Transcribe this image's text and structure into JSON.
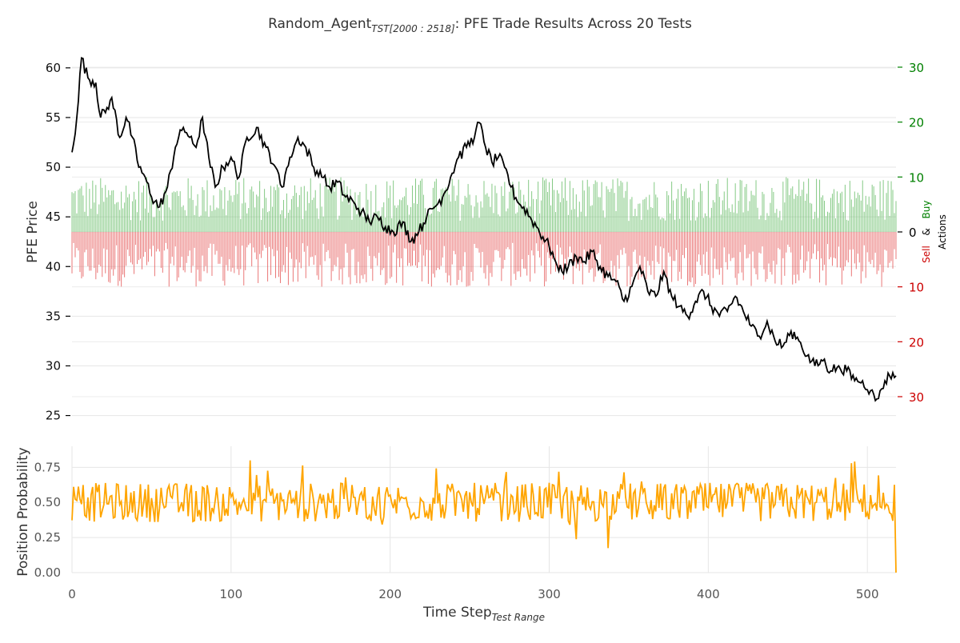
{
  "chart_data": [
    {
      "type": "line",
      "title_main": "Random_Agent",
      "title_sub": "TST[2000 : 2518]",
      "title_rest": ": PFE Trade Results Across 20 Tests",
      "ylabel": "PFE Price",
      "ylim": [
        24,
        62
      ],
      "yticks": [
        "25",
        "30",
        "35",
        "40",
        "45",
        "50",
        "55",
        "60"
      ],
      "xlim": [
        0,
        518
      ],
      "grid": true,
      "series": [
        {
          "color": "#000000",
          "x": [
            0,
            3,
            6,
            10,
            15,
            18,
            22,
            25,
            30,
            34,
            38,
            42,
            46,
            50,
            55,
            60,
            65,
            70,
            74,
            78,
            82,
            86,
            90,
            95,
            100,
            105,
            110,
            116,
            122,
            128,
            132,
            137,
            142,
            147,
            152,
            157,
            162,
            167,
            172,
            177,
            182,
            187,
            192,
            197,
            202,
            208,
            213,
            218,
            223,
            228,
            233,
            238,
            243,
            248,
            253,
            256,
            260,
            264,
            268,
            272,
            276,
            280,
            284,
            288,
            292,
            296,
            300,
            304,
            308,
            312,
            317,
            322,
            327,
            332,
            337,
            342,
            347,
            352,
            357,
            362,
            367,
            372,
            377,
            382,
            387,
            392,
            397,
            402,
            407,
            412,
            417,
            422,
            427,
            432,
            437,
            442,
            447,
            452,
            457,
            462,
            467,
            472,
            477,
            482,
            487,
            492,
            497,
            502,
            505,
            508,
            511,
            514,
            518
          ],
          "y": [
            51.5,
            55,
            61,
            59,
            58.5,
            55,
            56,
            57,
            53,
            55,
            53,
            50,
            49,
            47,
            46,
            48,
            52,
            54,
            53,
            52,
            55,
            51,
            48,
            50,
            51,
            49,
            53,
            54,
            52,
            50,
            48,
            51,
            53,
            52,
            50,
            49,
            48,
            48.5,
            47,
            46.5,
            45.5,
            44.5,
            45,
            44,
            43.5,
            44.5,
            42.5,
            43.5,
            45,
            46,
            47,
            49,
            51,
            52,
            53,
            54.5,
            52,
            50.5,
            51,
            50,
            48,
            46.5,
            46,
            45,
            44,
            43,
            42,
            40.5,
            39.5,
            40,
            41,
            40.5,
            41.5,
            40,
            39,
            38.5,
            36.5,
            38,
            40,
            37.5,
            37,
            39.5,
            37,
            36,
            35,
            36.5,
            37.5,
            36,
            35,
            35.5,
            37,
            35.5,
            34,
            33,
            34.5,
            32.5,
            32,
            33.5,
            32.5,
            31,
            30,
            30.5,
            29.5,
            30,
            29.5,
            28.5,
            28.5,
            27.5,
            26.5,
            27.5,
            28.5,
            29,
            29
          ]
        }
      ]
    },
    {
      "type": "bar",
      "ylabel_sell": "Sell",
      "ylabel_amp": "&",
      "ylabel_buy": "Buy",
      "ylabel_actions": "Actions",
      "ylim": [
        -35,
        35
      ],
      "yticks": [
        {
          "value": 30,
          "label": "30",
          "color": "#008000"
        },
        {
          "value": 20,
          "label": "20",
          "color": "#008000"
        },
        {
          "value": 10,
          "label": "10",
          "color": "#008000"
        },
        {
          "value": 0,
          "label": "0",
          "color": "#000000"
        },
        {
          "value": -10,
          "label": "10",
          "color": "#cc0000"
        },
        {
          "value": -20,
          "label": "20",
          "color": "#cc0000"
        },
        {
          "value": -30,
          "label": "30",
          "color": "#cc0000"
        }
      ],
      "buy_color": "#5cb85c",
      "sell_color": "#e34a4a",
      "buy_range": [
        2,
        10
      ],
      "sell_range": [
        -10,
        -2
      ],
      "bar_count": 519
    },
    {
      "type": "line",
      "ylabel": "Position Probability",
      "xlabel_main": "Time Step",
      "xlabel_sub": "Test Range",
      "ylim": [
        0,
        0.9
      ],
      "yticks": [
        "0.00",
        "0.25",
        "0.50",
        "0.75"
      ],
      "xticks": [
        "0",
        "100",
        "200",
        "300",
        "400",
        "500"
      ],
      "xlim": [
        0,
        518
      ],
      "color": "#ffa500",
      "mean": 0.5,
      "spread": 0.14,
      "min": 0.15,
      "max": 0.86,
      "end_value": 0.0
    }
  ]
}
